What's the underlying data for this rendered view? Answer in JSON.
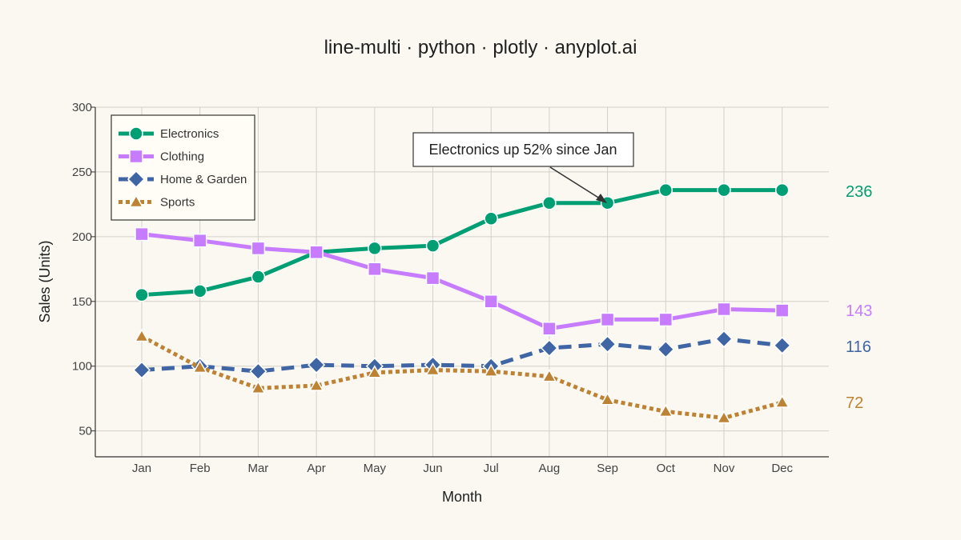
{
  "chart_data": {
    "type": "line",
    "title": "line-multi · python · plotly · anyplot.ai",
    "xlabel": "Month",
    "ylabel": "Sales (Units)",
    "categories": [
      "Jan",
      "Feb",
      "Mar",
      "Apr",
      "May",
      "Jun",
      "Jul",
      "Aug",
      "Sep",
      "Oct",
      "Nov",
      "Dec"
    ],
    "ylim": [
      30,
      300
    ],
    "yticks": [
      50,
      100,
      150,
      200,
      250,
      300
    ],
    "grid": true,
    "legend_position": "top-left",
    "series": [
      {
        "name": "Electronics",
        "color": "#009E73",
        "marker": "circle",
        "dash": "solid",
        "values": [
          155,
          158,
          169,
          188,
          191,
          193,
          214,
          226,
          226,
          236,
          236,
          236
        ],
        "end_label": "236"
      },
      {
        "name": "Clothing",
        "color": "#C77CFF",
        "marker": "square",
        "dash": "solid",
        "values": [
          202,
          197,
          191,
          188,
          175,
          168,
          150,
          129,
          136,
          136,
          144,
          143
        ],
        "end_label": "143"
      },
      {
        "name": "Home & Garden",
        "color": "#3F65A5",
        "marker": "diamond",
        "dash": "dash",
        "values": [
          97,
          100,
          96,
          101,
          100,
          101,
          100,
          114,
          117,
          113,
          121,
          116
        ],
        "end_label": "116"
      },
      {
        "name": "Sports",
        "color": "#BD8233",
        "marker": "triangle",
        "dash": "dot",
        "values": [
          123,
          99,
          83,
          85,
          95,
          97,
          96,
          92,
          74,
          65,
          60,
          72
        ],
        "end_label": "72"
      }
    ],
    "annotation": {
      "text": "Electronics up 52% since Jan",
      "x": "Sep",
      "y": 226
    }
  }
}
